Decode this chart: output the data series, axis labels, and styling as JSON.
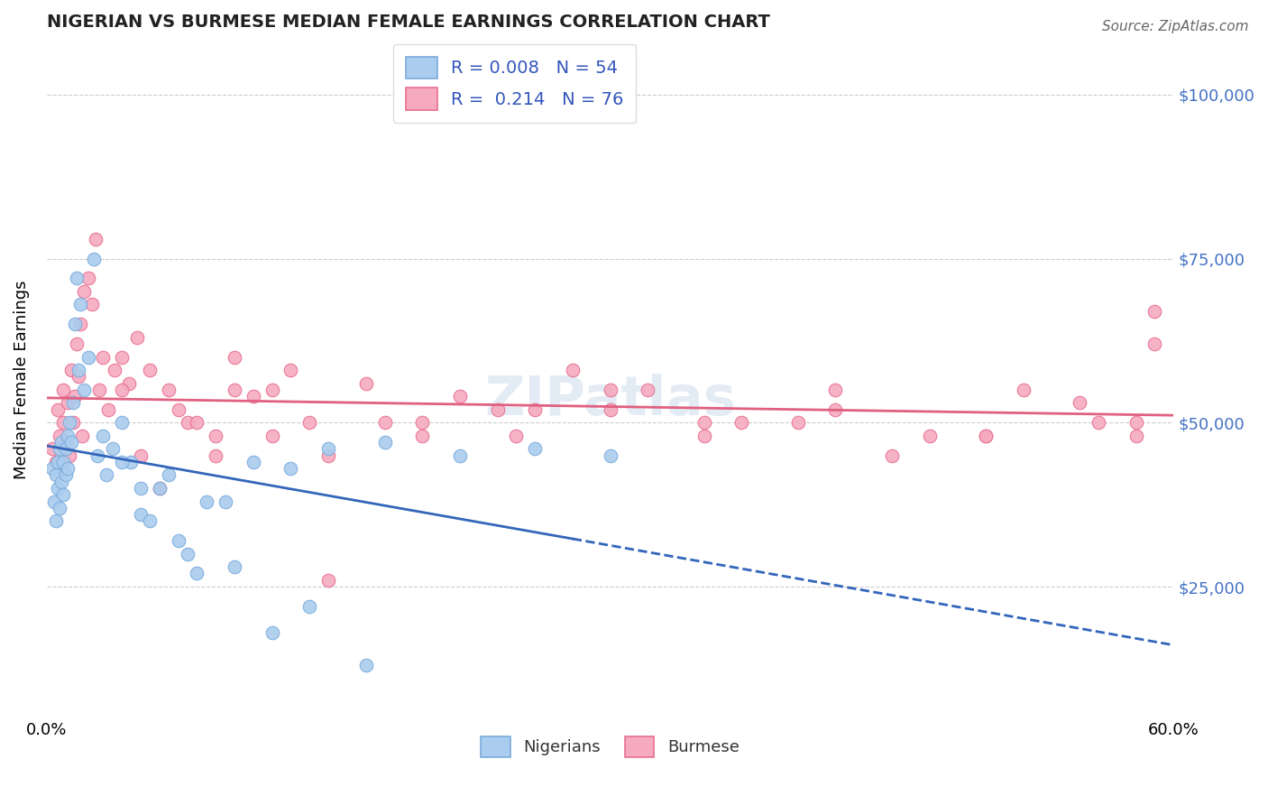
{
  "title": "NIGERIAN VS BURMESE MEDIAN FEMALE EARNINGS CORRELATION CHART",
  "source": "Source: ZipAtlas.com",
  "ylabel_label": "Median Female Earnings",
  "ytick_labels": [
    "$25,000",
    "$50,000",
    "$75,000",
    "$100,000"
  ],
  "ytick_values": [
    25000,
    50000,
    75000,
    100000
  ],
  "xlim": [
    0.0,
    0.6
  ],
  "ylim": [
    5000,
    108000
  ],
  "nigerians_R": 0.008,
  "nigerians_N": 54,
  "burmese_R": 0.214,
  "burmese_N": 76,
  "nigerian_color": "#aaccee",
  "nigerian_edge_color": "#7aacdd",
  "burmese_color": "#f5aac0",
  "burmese_edge_color": "#e87090",
  "nigerian_line_color": "#3366bb",
  "burmese_line_color": "#e06080",
  "watermark": "ZIPatlas",
  "legend_nig_color": "#aaccee",
  "legend_nig_edge": "#7aacdd",
  "legend_bur_color": "#f5aac0",
  "legend_bur_edge": "#e87090",
  "legend_text_color": "#3355bb",
  "ytick_color": "#4472C4",
  "nig_x": [
    0.003,
    0.004,
    0.005,
    0.005,
    0.006,
    0.006,
    0.007,
    0.007,
    0.008,
    0.008,
    0.009,
    0.009,
    0.01,
    0.01,
    0.011,
    0.011,
    0.012,
    0.013,
    0.014,
    0.015,
    0.016,
    0.017,
    0.018,
    0.02,
    0.022,
    0.025,
    0.027,
    0.03,
    0.032,
    0.035,
    0.04,
    0.045,
    0.05,
    0.06,
    0.07,
    0.08,
    0.095,
    0.11,
    0.13,
    0.15,
    0.18,
    0.22,
    0.26,
    0.3,
    0.04,
    0.05,
    0.055,
    0.065,
    0.075,
    0.085,
    0.1,
    0.12,
    0.14,
    0.17
  ],
  "nig_y": [
    43000,
    38000,
    35000,
    42000,
    40000,
    44000,
    37000,
    46000,
    41000,
    47000,
    39000,
    44000,
    42000,
    46000,
    43000,
    48000,
    50000,
    47000,
    53000,
    65000,
    72000,
    58000,
    68000,
    55000,
    60000,
    75000,
    45000,
    48000,
    42000,
    46000,
    50000,
    44000,
    36000,
    40000,
    32000,
    27000,
    38000,
    44000,
    43000,
    46000,
    47000,
    45000,
    46000,
    45000,
    44000,
    40000,
    35000,
    42000,
    30000,
    38000,
    28000,
    18000,
    22000,
    13000
  ],
  "bur_x": [
    0.003,
    0.005,
    0.006,
    0.007,
    0.008,
    0.009,
    0.009,
    0.01,
    0.011,
    0.012,
    0.013,
    0.014,
    0.015,
    0.016,
    0.017,
    0.018,
    0.019,
    0.02,
    0.022,
    0.024,
    0.026,
    0.028,
    0.03,
    0.033,
    0.036,
    0.04,
    0.044,
    0.048,
    0.055,
    0.065,
    0.075,
    0.09,
    0.11,
    0.13,
    0.15,
    0.18,
    0.22,
    0.26,
    0.3,
    0.35,
    0.4,
    0.45,
    0.5,
    0.55,
    0.59,
    0.59,
    0.1,
    0.12,
    0.14,
    0.17,
    0.2,
    0.24,
    0.28,
    0.32,
    0.37,
    0.42,
    0.47,
    0.52,
    0.56,
    0.58,
    0.04,
    0.05,
    0.06,
    0.07,
    0.08,
    0.09,
    0.1,
    0.12,
    0.15,
    0.2,
    0.25,
    0.3,
    0.35,
    0.42,
    0.5,
    0.58
  ],
  "bur_y": [
    46000,
    44000,
    52000,
    48000,
    43000,
    50000,
    55000,
    47000,
    53000,
    45000,
    58000,
    50000,
    54000,
    62000,
    57000,
    65000,
    48000,
    70000,
    72000,
    68000,
    78000,
    55000,
    60000,
    52000,
    58000,
    60000,
    56000,
    63000,
    58000,
    55000,
    50000,
    48000,
    54000,
    58000,
    45000,
    50000,
    54000,
    52000,
    55000,
    48000,
    50000,
    45000,
    48000,
    53000,
    62000,
    67000,
    60000,
    55000,
    50000,
    56000,
    48000,
    52000,
    58000,
    55000,
    50000,
    52000,
    48000,
    55000,
    50000,
    48000,
    55000,
    45000,
    40000,
    52000,
    50000,
    45000,
    55000,
    48000,
    26000,
    50000,
    48000,
    52000,
    50000,
    55000,
    48000,
    50000
  ]
}
